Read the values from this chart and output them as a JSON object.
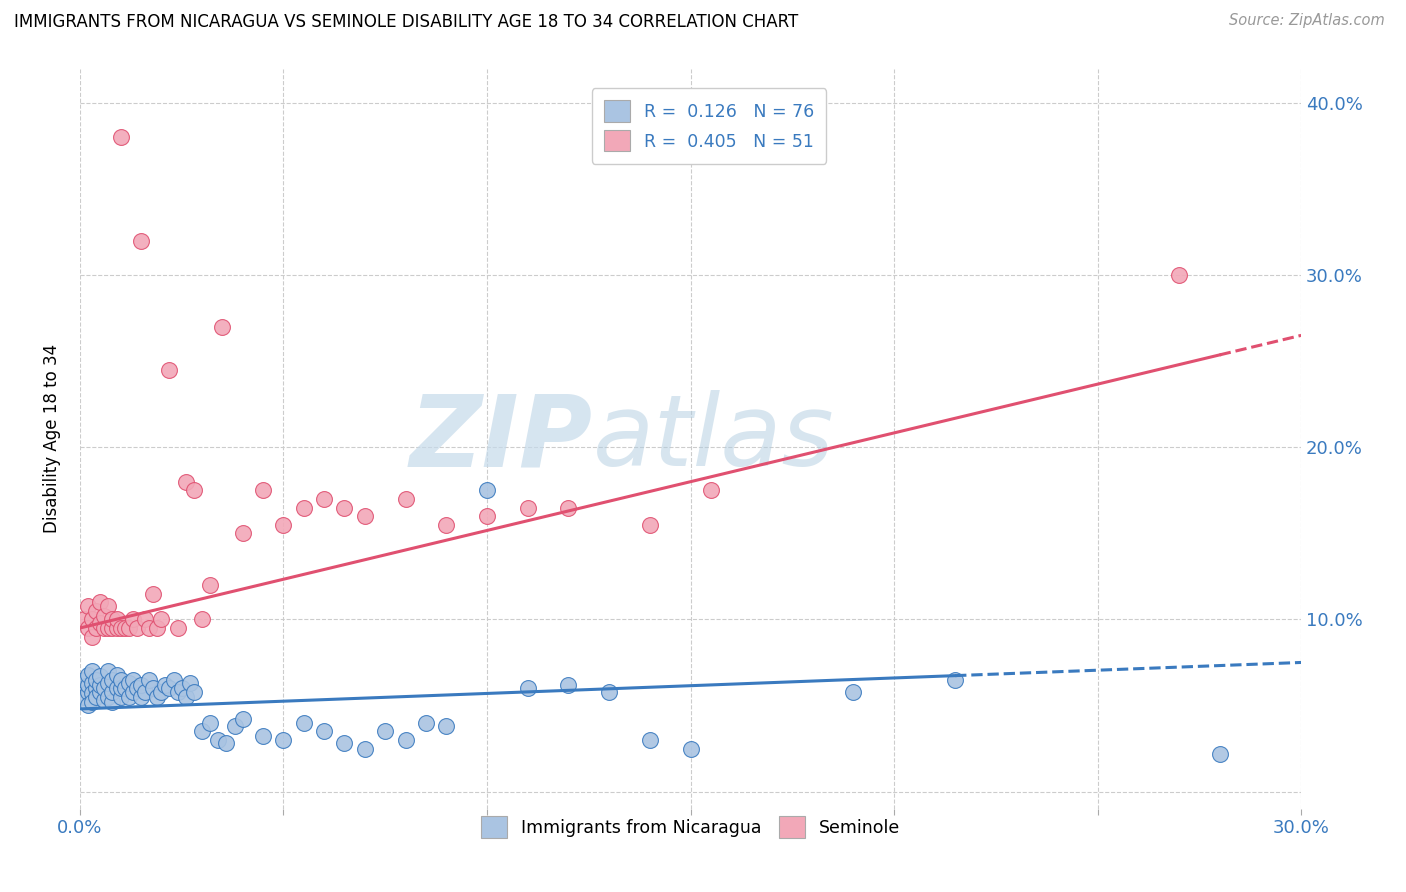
{
  "title": "IMMIGRANTS FROM NICARAGUA VS SEMINOLE DISABILITY AGE 18 TO 34 CORRELATION CHART",
  "source": "Source: ZipAtlas.com",
  "xlabel_label": "Immigrants from Nicaragua",
  "ylabel_label": "Disability Age 18 to 34",
  "x_min": 0.0,
  "x_max": 0.3,
  "y_min": -0.01,
  "y_max": 0.42,
  "watermark": "ZIPatlas",
  "color_blue": "#aac4e2",
  "color_pink": "#f2a8b8",
  "line_color_blue": "#3a7abf",
  "line_color_pink": "#e05070",
  "blue_line_start_y": 0.048,
  "blue_line_end_y": 0.075,
  "blue_line_x_start": 0.0,
  "blue_line_x_solid_end": 0.215,
  "blue_line_x_end": 0.3,
  "pink_line_start_y": 0.095,
  "pink_line_end_y": 0.265,
  "pink_line_x_start": 0.0,
  "pink_line_x_solid_end": 0.28,
  "pink_line_x_end": 0.3,
  "blue_scatter_x": [
    0.001,
    0.001,
    0.001,
    0.002,
    0.002,
    0.002,
    0.002,
    0.003,
    0.003,
    0.003,
    0.003,
    0.004,
    0.004,
    0.004,
    0.005,
    0.005,
    0.005,
    0.006,
    0.006,
    0.007,
    0.007,
    0.007,
    0.008,
    0.008,
    0.008,
    0.009,
    0.009,
    0.01,
    0.01,
    0.01,
    0.011,
    0.012,
    0.012,
    0.013,
    0.013,
    0.014,
    0.015,
    0.015,
    0.016,
    0.017,
    0.018,
    0.019,
    0.02,
    0.021,
    0.022,
    0.023,
    0.024,
    0.025,
    0.026,
    0.027,
    0.028,
    0.03,
    0.032,
    0.034,
    0.036,
    0.038,
    0.04,
    0.045,
    0.05,
    0.055,
    0.06,
    0.065,
    0.07,
    0.075,
    0.08,
    0.085,
    0.09,
    0.1,
    0.11,
    0.12,
    0.13,
    0.14,
    0.15,
    0.19,
    0.215,
    0.28
  ],
  "blue_scatter_y": [
    0.06,
    0.055,
    0.065,
    0.058,
    0.062,
    0.05,
    0.068,
    0.063,
    0.057,
    0.07,
    0.052,
    0.06,
    0.055,
    0.065,
    0.058,
    0.062,
    0.067,
    0.053,
    0.06,
    0.055,
    0.063,
    0.07,
    0.052,
    0.058,
    0.065,
    0.06,
    0.068,
    0.055,
    0.06,
    0.065,
    0.06,
    0.055,
    0.063,
    0.058,
    0.065,
    0.06,
    0.055,
    0.062,
    0.058,
    0.065,
    0.06,
    0.055,
    0.058,
    0.062,
    0.06,
    0.065,
    0.058,
    0.06,
    0.055,
    0.063,
    0.058,
    0.035,
    0.04,
    0.03,
    0.028,
    0.038,
    0.042,
    0.032,
    0.03,
    0.04,
    0.035,
    0.028,
    0.025,
    0.035,
    0.03,
    0.04,
    0.038,
    0.175,
    0.06,
    0.062,
    0.058,
    0.03,
    0.025,
    0.058,
    0.065,
    0.022
  ],
  "pink_scatter_x": [
    0.001,
    0.002,
    0.002,
    0.003,
    0.003,
    0.004,
    0.004,
    0.005,
    0.005,
    0.006,
    0.006,
    0.007,
    0.007,
    0.008,
    0.008,
    0.009,
    0.009,
    0.01,
    0.01,
    0.011,
    0.012,
    0.013,
    0.014,
    0.015,
    0.016,
    0.017,
    0.018,
    0.019,
    0.02,
    0.022,
    0.024,
    0.026,
    0.028,
    0.03,
    0.032,
    0.035,
    0.04,
    0.045,
    0.05,
    0.055,
    0.06,
    0.065,
    0.07,
    0.08,
    0.09,
    0.1,
    0.11,
    0.12,
    0.14,
    0.155,
    0.27
  ],
  "pink_scatter_y": [
    0.1,
    0.095,
    0.108,
    0.09,
    0.1,
    0.095,
    0.105,
    0.098,
    0.11,
    0.095,
    0.102,
    0.095,
    0.108,
    0.095,
    0.1,
    0.095,
    0.1,
    0.095,
    0.38,
    0.095,
    0.095,
    0.1,
    0.095,
    0.32,
    0.1,
    0.095,
    0.115,
    0.095,
    0.1,
    0.245,
    0.095,
    0.18,
    0.175,
    0.1,
    0.12,
    0.27,
    0.15,
    0.175,
    0.155,
    0.165,
    0.17,
    0.165,
    0.16,
    0.17,
    0.155,
    0.16,
    0.165,
    0.165,
    0.155,
    0.175,
    0.3
  ]
}
